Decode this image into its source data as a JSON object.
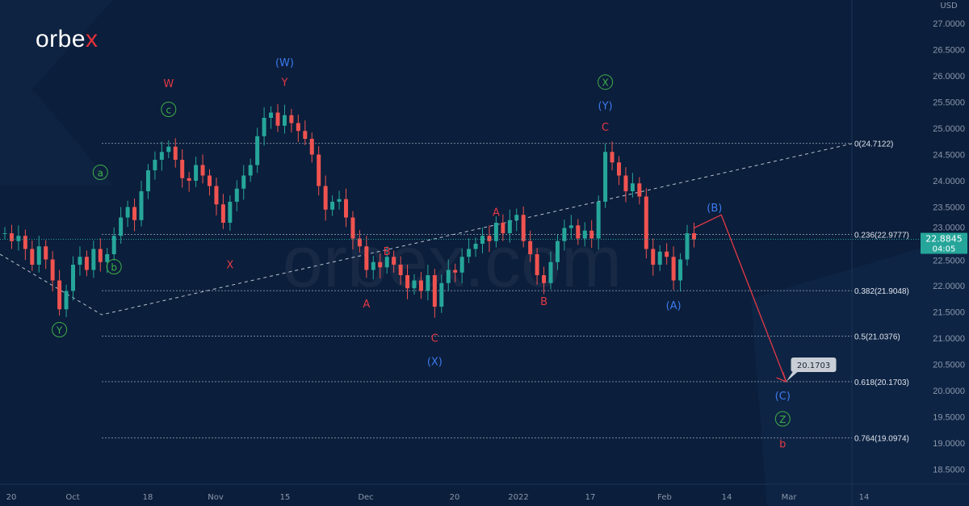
{
  "brand": {
    "name_main": "orbe",
    "name_accent": "x",
    "watermark": "orbex.com"
  },
  "colors": {
    "background": "#0b1e3b",
    "up": "#26a69a",
    "down": "#ef5350",
    "wave_red": "#e53946",
    "wave_blue": "#3d7bf0",
    "wave_green": "#3fae49",
    "price_tag": "#26a69a"
  },
  "chart_data": {
    "type": "candlestick",
    "currency": "USD",
    "ylim": [
      18.5,
      27.0
    ],
    "yticks": [
      "27.0000",
      "26.5000",
      "26.0000",
      "25.5000",
      "25.0000",
      "24.5000",
      "24.0000",
      "23.5000",
      "23.0000",
      "22.5000",
      "22.0000",
      "21.5000",
      "21.0000",
      "20.5000",
      "20.0000",
      "19.5000",
      "19.0000",
      "18.5000"
    ],
    "xticks": [
      "20",
      "Oct",
      "18",
      "Nov",
      "15",
      "Dec",
      "20",
      "2022",
      "17",
      "Feb",
      "14",
      "Mar",
      "14"
    ],
    "closes": [
      23.0,
      22.85,
      22.95,
      22.7,
      22.4,
      22.75,
      22.5,
      22.1,
      21.55,
      21.9,
      22.4,
      22.55,
      22.3,
      22.7,
      22.45,
      22.6,
      22.95,
      23.3,
      23.5,
      23.25,
      23.8,
      24.2,
      24.4,
      24.55,
      24.65,
      24.4,
      24.05,
      24.0,
      24.3,
      24.1,
      23.9,
      23.55,
      23.2,
      23.6,
      23.85,
      24.1,
      24.3,
      24.85,
      25.2,
      25.3,
      25.05,
      25.25,
      25.1,
      24.95,
      24.8,
      24.5,
      23.9,
      23.45,
      23.6,
      23.65,
      23.3,
      22.9,
      22.75,
      22.3,
      22.45,
      22.35,
      22.55,
      22.4,
      22.2,
      21.95,
      22.1,
      21.9,
      22.2,
      21.6,
      22.05,
      22.3,
      22.25,
      22.55,
      22.7,
      22.8,
      22.95,
      22.85,
      23.2,
      23.0,
      23.25,
      23.35,
      22.85,
      22.6,
      22.2,
      22.05,
      22.45,
      22.85,
      23.1,
      23.15,
      22.9,
      23.05,
      22.9,
      23.6,
      24.55,
      24.35,
      24.1,
      23.8,
      23.95,
      23.7,
      22.7,
      22.4,
      22.65,
      22.55,
      22.1,
      22.5,
      23.0,
      22.88
    ],
    "current_price": {
      "value": "22.8845",
      "countdown": "04:05"
    },
    "fib_levels": [
      {
        "ratio": "0",
        "price": 24.7122,
        "label": "0(24.7122)"
      },
      {
        "ratio": "0.236",
        "price": 22.9777,
        "label": "0.236(22.9777)"
      },
      {
        "ratio": "0.382",
        "price": 21.9048,
        "label": "0.382(21.9048)"
      },
      {
        "ratio": "0.5",
        "price": 21.0376,
        "label": "0.5(21.0376)"
      },
      {
        "ratio": "0.618",
        "price": 20.1703,
        "label": "0.618(20.1703)"
      },
      {
        "ratio": "0.764",
        "price": 19.0974,
        "label": "0.764(19.0974)"
      }
    ],
    "target_callout": "20.1703",
    "wave_labels": [
      {
        "text": "W",
        "color": "red",
        "circle": false,
        "bar": 24,
        "price": 25.8
      },
      {
        "text": "Y",
        "color": "red",
        "circle": false,
        "bar": 41,
        "price": 25.82
      },
      {
        "text": "(W)",
        "color": "blue",
        "circle": false,
        "bar": 41,
        "price": 26.2
      },
      {
        "text": "c",
        "color": "green",
        "circle": true,
        "bar": 24,
        "price": 25.3
      },
      {
        "text": "a",
        "color": "green",
        "circle": true,
        "bar": 14,
        "price": 24.1
      },
      {
        "text": "b",
        "color": "green",
        "circle": true,
        "bar": 16,
        "price": 22.3
      },
      {
        "text": "Y",
        "color": "green",
        "circle": true,
        "bar": 8,
        "price": 21.1
      },
      {
        "text": "X",
        "color": "red",
        "circle": false,
        "bar": 33,
        "price": 22.35
      },
      {
        "text": "A",
        "color": "red",
        "circle": false,
        "bar": 53,
        "price": 21.6
      },
      {
        "text": "B",
        "color": "red",
        "circle": false,
        "bar": 56,
        "price": 22.6
      },
      {
        "text": "C",
        "color": "red",
        "circle": false,
        "bar": 63,
        "price": 20.95
      },
      {
        "text": "(X)",
        "color": "blue",
        "circle": false,
        "bar": 63,
        "price": 20.5
      },
      {
        "text": "A",
        "color": "red",
        "circle": false,
        "bar": 72,
        "price": 23.35
      },
      {
        "text": "B",
        "color": "red",
        "circle": false,
        "bar": 79,
        "price": 21.65
      },
      {
        "text": "C",
        "color": "red",
        "circle": false,
        "bar": 88,
        "price": 24.97
      },
      {
        "text": "(Y)",
        "color": "blue",
        "circle": false,
        "bar": 88,
        "price": 25.38
      },
      {
        "text": "X",
        "color": "green",
        "circle": true,
        "bar": 88,
        "price": 25.82
      },
      {
        "text": "(A)",
        "color": "blue",
        "circle": false,
        "bar": 98,
        "price": 21.57
      },
      {
        "text": "(B)",
        "color": "blue",
        "circle": false,
        "bar": 104,
        "price": 23.43
      },
      {
        "text": "(C)",
        "color": "blue",
        "circle": false,
        "bar": 114,
        "price": 19.85
      },
      {
        "text": "Z",
        "color": "green",
        "circle": true,
        "bar": 114,
        "price": 19.4
      },
      {
        "text": "b",
        "color": "red",
        "circle": false,
        "bar": 114,
        "price": 18.93
      }
    ],
    "projection": [
      {
        "bar": 101,
        "price": 23.1
      },
      {
        "bar": 105,
        "price": 23.35
      },
      {
        "bar": 114.5,
        "price": 20.17
      }
    ]
  }
}
